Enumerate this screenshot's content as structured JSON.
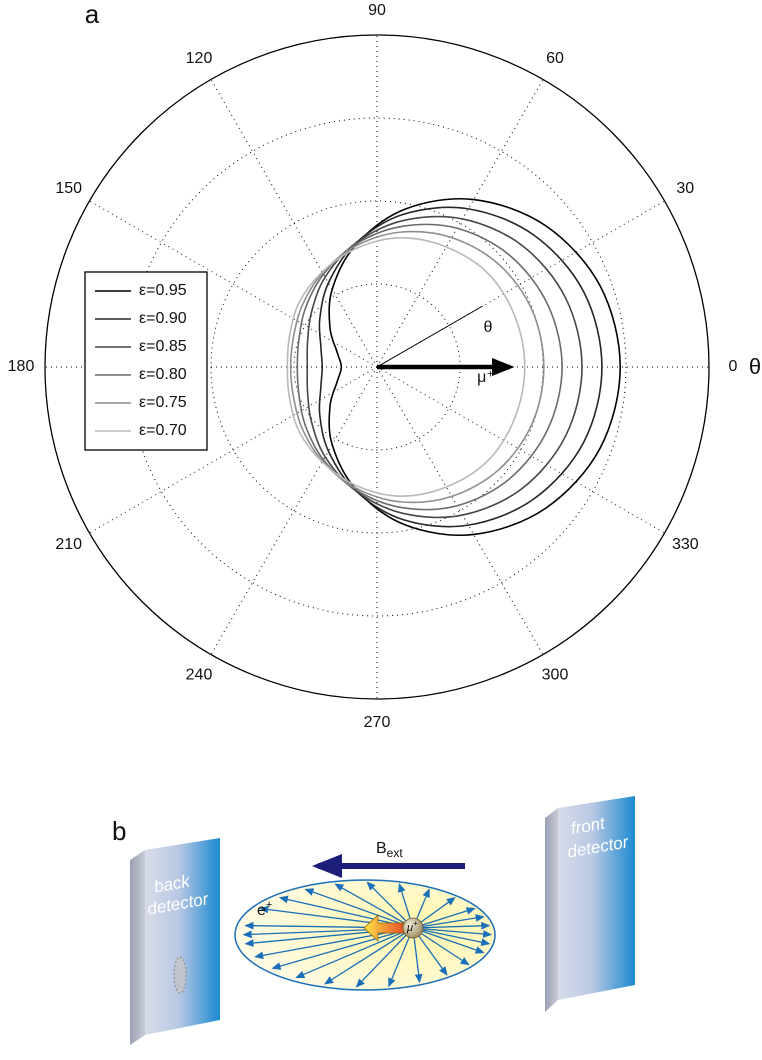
{
  "chart_data": {
    "type": "polar",
    "panel_label": "a",
    "theta_label": "θ",
    "annotations": [
      "θ",
      "μ⁺"
    ],
    "theta": [
      0,
      20,
      40,
      60,
      80,
      100,
      120,
      140,
      160,
      180,
      200,
      220,
      240,
      260,
      280,
      300,
      320,
      340
    ],
    "thetaticks": [
      0,
      30,
      60,
      90,
      120,
      150,
      180,
      210,
      240,
      270,
      300,
      330
    ],
    "rlim": [
      0,
      4
    ],
    "rticks": [
      1,
      2,
      3,
      4
    ],
    "grid": true,
    "legend": "left",
    "series": [
      {
        "name": "ε=0.95",
        "color": "#000000",
        "values": [
          2.93,
          2.86,
          2.65,
          2.33,
          1.93,
          1.49,
          1.08,
          0.74,
          0.51,
          0.43,
          0.51,
          0.74,
          1.08,
          1.49,
          1.93,
          2.33,
          2.65,
          2.86
        ]
      },
      {
        "name": "ε=0.90",
        "color": "#262626",
        "values": [
          2.71,
          2.65,
          2.47,
          2.2,
          1.87,
          1.51,
          1.17,
          0.9,
          0.72,
          0.66,
          0.72,
          0.9,
          1.17,
          1.51,
          1.87,
          2.2,
          2.47,
          2.65
        ]
      },
      {
        "name": "ε=0.85",
        "color": "#474747",
        "values": [
          2.47,
          2.42,
          2.28,
          2.06,
          1.79,
          1.51,
          1.25,
          1.03,
          0.89,
          0.84,
          0.89,
          1.03,
          1.25,
          1.51,
          1.79,
          2.06,
          2.28,
          2.42
        ]
      },
      {
        "name": "ε=0.80",
        "color": "#6a6a6a",
        "values": [
          2.23,
          2.19,
          2.09,
          1.93,
          1.72,
          1.5,
          1.29,
          1.12,
          1.0,
          0.96,
          1.0,
          1.12,
          1.29,
          1.5,
          1.72,
          1.93,
          2.09,
          2.19
        ]
      },
      {
        "name": "ε=0.75",
        "color": "#8e8e8e",
        "values": [
          2.01,
          1.99,
          1.92,
          1.8,
          1.65,
          1.48,
          1.31,
          1.17,
          1.07,
          1.04,
          1.07,
          1.17,
          1.31,
          1.48,
          1.65,
          1.8,
          1.92,
          1.99
        ]
      },
      {
        "name": "ε=0.70",
        "color": "#b8b8b8",
        "values": [
          1.78,
          1.77,
          1.75,
          1.67,
          1.58,
          1.45,
          1.32,
          1.22,
          1.12,
          1.08,
          1.12,
          1.22,
          1.32,
          1.45,
          1.58,
          1.67,
          1.75,
          1.77
        ]
      }
    ]
  },
  "panel_b": {
    "label": "b",
    "field": "B",
    "field_sub": "ext",
    "positron": "e",
    "positron_sup": "+",
    "muon": "μ",
    "muon_sup": "+",
    "back_detector": [
      "back",
      "detector"
    ],
    "front_detector": [
      "front",
      "detector"
    ]
  }
}
